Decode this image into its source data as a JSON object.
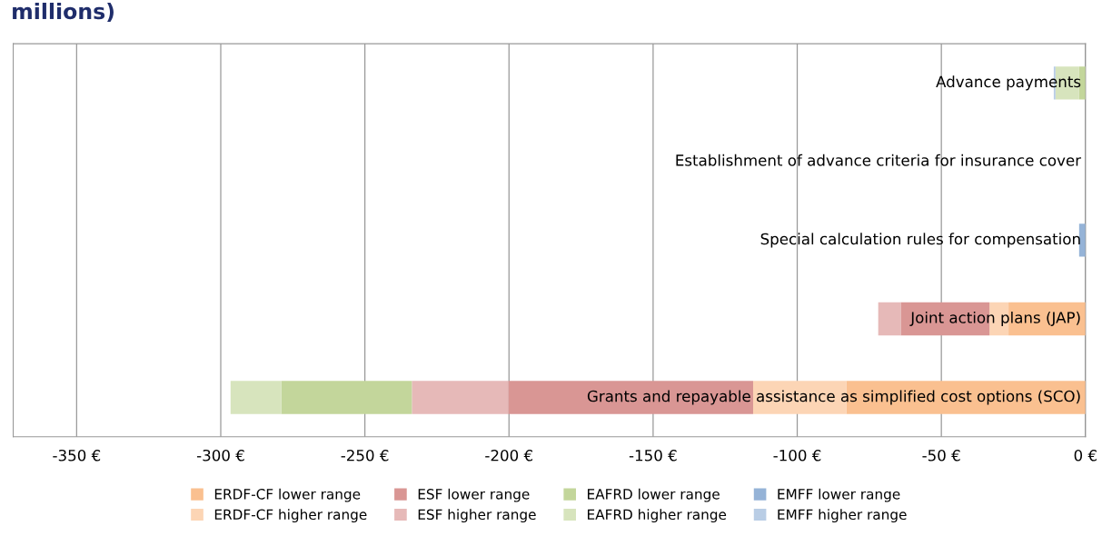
{
  "chart_data": {
    "type": "bar",
    "orientation": "horizontal",
    "stacked": true,
    "title": "millions)",
    "categories": [
      "Advance payments",
      "Establishment of advance criteria for insurance cover",
      "Special calculation rules for compensation",
      "Joint action plans (JAP)",
      "Grants and repayable assistance as simplified cost options (SCO)"
    ],
    "series": [
      {
        "name": "ERDF-CF lower range",
        "color": "#fac090",
        "values": [
          0,
          0,
          0,
          -26.7,
          -83
        ]
      },
      {
        "name": "ERDF-CF higher range",
        "color": "#fcd5b5",
        "values": [
          0,
          0,
          0,
          -6.6,
          -32.3
        ]
      },
      {
        "name": "ESF lower range",
        "color": "#d99694",
        "values": [
          0,
          0,
          0,
          -30.8,
          -85
        ]
      },
      {
        "name": "ESF higher range",
        "color": "#e6b9b8",
        "values": [
          0,
          0,
          0,
          -7.8,
          -33.4
        ]
      },
      {
        "name": "EAFRD lower range",
        "color": "#c3d69b",
        "values": [
          -2.2,
          0,
          0,
          0,
          -45.3
        ]
      },
      {
        "name": "EAFRD higher range",
        "color": "#d7e4bd",
        "values": [
          -8.2,
          0,
          0,
          0,
          -17.6
        ]
      },
      {
        "name": "EMFF lower range",
        "color": "#95b3d7",
        "values": [
          0,
          0,
          -2.2,
          0,
          0
        ]
      },
      {
        "name": "EMFF higher range",
        "color": "#b9cde5",
        "values": [
          -0.6,
          0,
          0,
          0,
          0
        ]
      }
    ],
    "xlim": [
      -372,
      0
    ],
    "xticks": [
      {
        "value": -350,
        "label": "-350 €"
      },
      {
        "value": -300,
        "label": "-300 €"
      },
      {
        "value": -250,
        "label": "-250 €"
      },
      {
        "value": -200,
        "label": "-200 €"
      },
      {
        "value": -150,
        "label": "-150 €"
      },
      {
        "value": -100,
        "label": "-100 €"
      },
      {
        "value": -50,
        "label": "-50 €"
      },
      {
        "value": 0,
        "label": "0 €"
      }
    ],
    "grid": "x",
    "legend": "bottom"
  }
}
